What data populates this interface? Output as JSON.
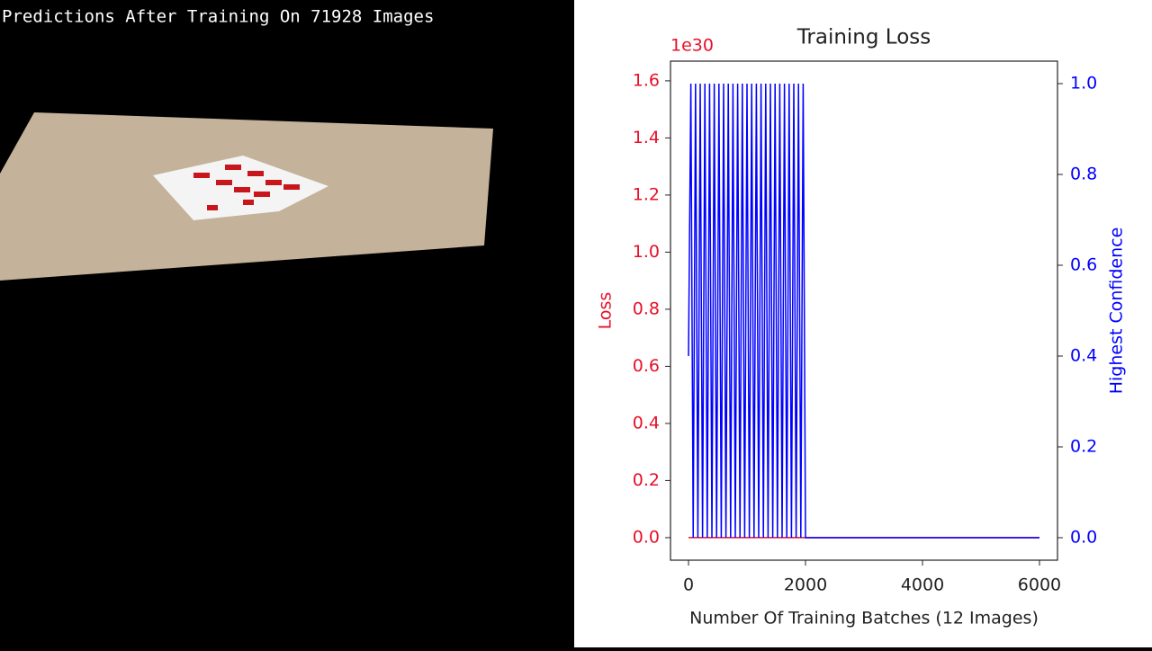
{
  "overlay_text": "Predictions After Training On 71928 Images",
  "chart_data": {
    "type": "line",
    "title": "Training Loss",
    "xlabel": "Number Of Training Batches (12 Images)",
    "ylabel": "Loss",
    "y2label": "Highest Confidence",
    "yoffset_text": "1e30",
    "x": [
      0,
      40,
      80,
      120,
      160,
      200,
      240,
      280,
      320,
      360,
      400,
      440,
      480,
      520,
      560,
      600,
      640,
      680,
      720,
      760,
      800,
      840,
      880,
      920,
      960,
      1000,
      1040,
      1080,
      1120,
      1160,
      1200,
      1240,
      1280,
      1320,
      1360,
      1400,
      1440,
      1480,
      1520,
      1560,
      1600,
      1640,
      1680,
      1720,
      1760,
      1800,
      1840,
      1880,
      1920,
      1960,
      2000,
      3000,
      4000,
      5000,
      6000
    ],
    "series": [
      {
        "color": "#e8102a",
        "axis": "y",
        "values": [
          0,
          0,
          0,
          0,
          0,
          0,
          0,
          0,
          0,
          0,
          0,
          0,
          0,
          0,
          0,
          0,
          0,
          0,
          0,
          0,
          0,
          0,
          0,
          0,
          0,
          0,
          0,
          0,
          0,
          0,
          0,
          0,
          0,
          0,
          0,
          0,
          0,
          0,
          0,
          0,
          0,
          0,
          0,
          0,
          0,
          0,
          0,
          0,
          0,
          0,
          0,
          0,
          0,
          0,
          0
        ]
      },
      {
        "color": "#0000ff",
        "axis": "y2",
        "values": [
          0.4,
          1,
          0,
          1,
          0,
          1,
          0,
          1,
          0,
          1,
          0,
          1,
          0,
          1,
          0,
          1,
          0,
          1,
          0,
          1,
          0,
          1,
          0,
          1,
          0,
          1,
          0,
          1,
          0,
          1,
          0,
          1,
          0,
          1,
          0,
          1,
          0,
          1,
          0,
          1,
          0,
          1,
          0,
          1,
          0,
          1,
          0,
          1,
          0,
          1,
          0,
          0,
          0,
          0,
          0
        ]
      }
    ],
    "xlim": [
      -308,
      6308
    ],
    "xticks": [
      0,
      2000,
      4000,
      6000
    ],
    "ylim": [
      -0.079,
      1.669
    ],
    "yticks": [
      {
        "value": 0,
        "label": "0.0"
      },
      {
        "value": 0.2,
        "label": "0.2"
      },
      {
        "value": 0.4,
        "label": "0.4"
      },
      {
        "value": 0.6,
        "label": "0.6"
      },
      {
        "value": 0.8,
        "label": "0.8"
      },
      {
        "value": 1.0,
        "label": "1.0"
      },
      {
        "value": 1.2,
        "label": "1.2"
      },
      {
        "value": 1.4,
        "label": "1.4"
      },
      {
        "value": 1.6,
        "label": "1.6"
      }
    ],
    "y2lim": [
      -0.0495,
      1.0495
    ],
    "y2ticks": [
      {
        "value": 0,
        "label": "0.0"
      },
      {
        "value": 0.2,
        "label": "0.2"
      },
      {
        "value": 0.4,
        "label": "0.4"
      },
      {
        "value": 0.6,
        "label": "0.6"
      },
      {
        "value": 0.8,
        "label": "0.8"
      },
      {
        "value": 1.0,
        "label": "1.0"
      }
    ]
  }
}
